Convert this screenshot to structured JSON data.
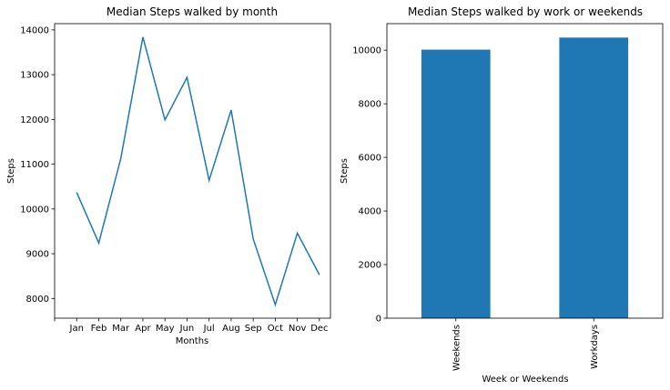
{
  "chart_data": [
    {
      "type": "line",
      "title": "Median Steps walked by month",
      "xlabel": "Months",
      "ylabel": "Steps",
      "categories": [
        "Jan",
        "Feb",
        "Mar",
        "Apr",
        "May",
        "Jun",
        "Jul",
        "Aug",
        "Sep",
        "Oct",
        "Nov",
        "Dec"
      ],
      "values": [
        10370,
        9240,
        11130,
        13840,
        11990,
        12940,
        10640,
        12210,
        9330,
        7860,
        9460,
        8530
      ],
      "xlim": [
        -1,
        11.5
      ],
      "ylim": [
        7560,
        14140
      ],
      "yticks": [
        8000,
        9000,
        10000,
        11000,
        12000,
        13000,
        14000
      ],
      "grid": false,
      "color": "#1f77b4"
    },
    {
      "type": "bar",
      "title": "Median Steps walked by work or weekends",
      "xlabel": "Week or Weekends",
      "ylabel": "Steps",
      "categories": [
        "Weekends",
        "Workdays"
      ],
      "values": [
        10020,
        10470
      ],
      "ylim": [
        0,
        10990
      ],
      "yticks": [
        0,
        2000,
        4000,
        6000,
        8000,
        10000
      ],
      "grid": false,
      "color": "#1f77b4"
    }
  ]
}
